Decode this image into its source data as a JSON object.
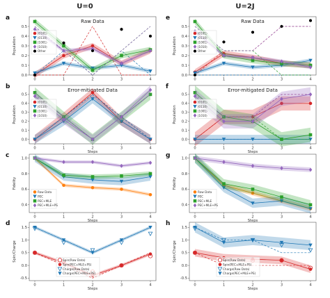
{
  "column_titles": [
    "U=0",
    "U=2J"
  ],
  "colors": {
    "s0101": "#d62728",
    "s0110": "#1f77b4",
    "s1001": "#2ca02c",
    "s1010": "#9467bd",
    "raw": "#ff7f0e",
    "other": "#000000"
  },
  "chart_data": [
    {
      "label": "a",
      "title": "Raw Data",
      "type": "line",
      "xlabel": "",
      "ylabel": "Population",
      "x": [
        0,
        1,
        2,
        3,
        4
      ],
      "ylim": [
        0,
        0.6
      ],
      "yticks": [
        "0.0",
        "0.1",
        "0.2",
        "0.3",
        "0.4",
        "0.5"
      ],
      "legend": [
        "|0101⟩",
        "|0110⟩",
        "|1001⟩",
        "|1010⟩",
        "Other"
      ],
      "series": [
        {
          "name": "|0101⟩",
          "key": "s0101",
          "marker": "circle",
          "values": [
            0.0,
            0.2,
            0.3,
            0.12,
            0.25
          ],
          "ideal": [
            0.0,
            0.0,
            0.5,
            0.0,
            0.0
          ],
          "band": 0.03
        },
        {
          "name": "|0110⟩",
          "key": "s0110",
          "marker": "tri",
          "values": [
            0.02,
            0.12,
            0.07,
            0.1,
            0.04
          ],
          "ideal": [
            0.0,
            0.25,
            0.0,
            0.25,
            0.0
          ],
          "band": 0.02
        },
        {
          "name": "|1001⟩",
          "key": "s1001",
          "marker": "square",
          "values": [
            0.55,
            0.3,
            0.05,
            0.2,
            0.26
          ],
          "ideal": [
            0.5,
            0.25,
            0.0,
            0.25,
            0.5
          ],
          "band": 0.03
        },
        {
          "name": "|1010⟩",
          "key": "s1010",
          "marker": "diamond",
          "values": [
            0.47,
            0.25,
            0.27,
            0.12,
            0.25
          ],
          "ideal": [
            0.5,
            0.25,
            0.0,
            0.25,
            0.5
          ],
          "band": 0.02
        },
        {
          "name": "Other",
          "key": "other",
          "marker": "hexagon",
          "values": [
            0.0,
            0.33,
            0.25,
            0.47,
            0.4
          ],
          "ideal": [],
          "band": 0
        }
      ]
    },
    {
      "label": "e",
      "title": "Raw Data",
      "type": "line",
      "xlabel": "",
      "ylabel": "Population",
      "x": [
        0,
        1,
        2,
        3,
        4
      ],
      "ylim": [
        0,
        0.6
      ],
      "yticks": [
        "0.0",
        "0.1",
        "0.2",
        "0.3",
        "0.4",
        "0.5"
      ],
      "legend": [
        "|0101⟩",
        "|0110⟩",
        "|1001⟩",
        "|1010⟩",
        "Other"
      ],
      "series": [
        {
          "name": "|0101⟩",
          "key": "s0101",
          "marker": "circle",
          "values": [
            0.03,
            0.22,
            0.18,
            0.12,
            0.1
          ],
          "ideal": [
            0.0,
            0.25,
            0.25,
            0.5,
            0.5
          ],
          "band": 0.03
        },
        {
          "name": "|0110⟩",
          "key": "s0110",
          "marker": "tri",
          "values": [
            0.02,
            0.12,
            0.08,
            0.1,
            0.15
          ],
          "ideal": [
            0.0,
            0.0,
            0.0,
            0.0,
            0.0
          ],
          "band": 0.02
        },
        {
          "name": "|1001⟩",
          "key": "s1001",
          "marker": "square",
          "values": [
            0.55,
            0.2,
            0.15,
            0.12,
            0.1
          ],
          "ideal": [
            0.5,
            0.25,
            0.25,
            0.0,
            0.0
          ],
          "band": 0.03
        },
        {
          "name": "|1010⟩",
          "key": "s1010",
          "marker": "diamond",
          "values": [
            0.45,
            0.2,
            0.18,
            0.14,
            0.08
          ],
          "ideal": [
            0.5,
            0.25,
            0.25,
            0.5,
            0.5
          ],
          "band": 0.02
        },
        {
          "name": "Other",
          "key": "other",
          "marker": "hexagon",
          "values": [
            0.0,
            0.34,
            0.44,
            0.5,
            0.56
          ],
          "ideal": [],
          "band": 0
        }
      ]
    },
    {
      "label": "b",
      "title": "Error-mitigated Data",
      "type": "line",
      "xlabel": "Steps",
      "ylabel": "Population",
      "x": [
        0,
        1,
        2,
        3,
        4
      ],
      "ylim": [
        -0.05,
        0.6
      ],
      "yticks": [
        "0.0",
        "0.1",
        "0.2",
        "0.3",
        "0.4",
        "0.5"
      ],
      "legend": [
        "|0101⟩",
        "|0110⟩",
        "|1001⟩",
        "|1010⟩"
      ],
      "series": [
        {
          "name": "|0101⟩",
          "key": "s0101",
          "marker": "circle",
          "values": [
            0.0,
            0.25,
            0.52,
            0.2,
            0.0
          ],
          "ideal": [
            0.0,
            0.25,
            0.5,
            0.25,
            0.0
          ],
          "band": 0.05
        },
        {
          "name": "|0110⟩",
          "key": "s0110",
          "marker": "tri",
          "values": [
            0.0,
            0.2,
            0.45,
            0.2,
            0.0
          ],
          "ideal": [
            0.0,
            0.25,
            0.5,
            0.25,
            0.0
          ],
          "band": 0.05
        },
        {
          "name": "|1001⟩",
          "key": "s1001",
          "marker": "square",
          "values": [
            0.52,
            0.25,
            0.0,
            0.25,
            0.5
          ],
          "ideal": [
            0.5,
            0.25,
            0.0,
            0.25,
            0.5
          ],
          "band": 0.06
        },
        {
          "name": "|1010⟩",
          "key": "s1010",
          "marker": "diamond",
          "values": [
            0.48,
            0.22,
            0.0,
            0.25,
            0.55
          ],
          "ideal": [
            0.5,
            0.25,
            0.0,
            0.25,
            0.5
          ],
          "band": 0.05
        }
      ]
    },
    {
      "label": "f",
      "title": "Error-mitigated Data",
      "type": "line",
      "xlabel": "Steps",
      "ylabel": "Population",
      "x": [
        0,
        1,
        2,
        3,
        4
      ],
      "ylim": [
        -0.05,
        0.6
      ],
      "yticks": [
        "0.0",
        "0.1",
        "0.2",
        "0.3",
        "0.4",
        "0.5"
      ],
      "legend": [
        "|0101⟩",
        "|0110⟩",
        "|1001⟩",
        "|1010⟩"
      ],
      "series": [
        {
          "name": "|0101⟩",
          "key": "s0101",
          "marker": "circle",
          "values": [
            0.0,
            0.25,
            0.25,
            0.4,
            0.4
          ],
          "ideal": [
            0.0,
            0.25,
            0.25,
            0.5,
            0.5
          ],
          "band": 0.08
        },
        {
          "name": "|0110⟩",
          "key": "s0110",
          "marker": "tri",
          "values": [
            0.0,
            0.0,
            0.0,
            0.0,
            0.0
          ],
          "ideal": [
            0.0,
            0.0,
            0.0,
            0.0,
            0.0
          ],
          "band": 0.05
        },
        {
          "name": "|1001⟩",
          "key": "s1001",
          "marker": "square",
          "values": [
            0.52,
            0.25,
            0.2,
            0.0,
            0.05
          ],
          "ideal": [
            0.5,
            0.25,
            0.25,
            0.0,
            0.0
          ],
          "band": 0.08
        },
        {
          "name": "|1010⟩",
          "key": "s1010",
          "marker": "diamond",
          "values": [
            0.48,
            0.2,
            0.2,
            0.45,
            0.5
          ],
          "ideal": [
            0.5,
            0.25,
            0.25,
            0.5,
            0.5
          ],
          "band": 0.08
        }
      ]
    },
    {
      "label": "c",
      "title": "",
      "type": "line",
      "xlabel": "Steps",
      "ylabel": "Fidelity",
      "x": [
        0,
        1,
        2,
        3,
        4
      ],
      "ylim": [
        0.3,
        1.05
      ],
      "yticks": [
        "0.4",
        "0.6",
        "0.8",
        "1.0"
      ],
      "legend": [
        "Raw Data",
        "PEC",
        "PEC+MLE",
        "PEC+MLE+PS"
      ],
      "series": [
        {
          "name": "Raw Data",
          "key": "raw",
          "marker": "circle",
          "values": [
            1.0,
            0.65,
            0.62,
            0.6,
            0.53
          ],
          "ideal": [],
          "band": 0.02
        },
        {
          "name": "PEC",
          "key": "s0110",
          "marker": "tri",
          "values": [
            1.0,
            0.76,
            0.72,
            0.7,
            0.76
          ],
          "ideal": [],
          "band": 0.05
        },
        {
          "name": "PEC+MLE",
          "key": "s1001",
          "marker": "square",
          "values": [
            1.0,
            0.78,
            0.76,
            0.77,
            0.8
          ],
          "ideal": [],
          "band": 0.03
        },
        {
          "name": "PEC+MLE+PS",
          "key": "s1010",
          "marker": "diamond",
          "values": [
            1.0,
            0.95,
            0.95,
            0.9,
            0.94
          ],
          "ideal": [],
          "band": 0.02
        }
      ]
    },
    {
      "label": "g",
      "title": "",
      "type": "line",
      "xlabel": "Steps",
      "ylabel": "Fidelity",
      "x": [
        0,
        1,
        2,
        3,
        4
      ],
      "ylim": [
        0.3,
        1.05
      ],
      "yticks": [
        "0.4",
        "0.6",
        "0.8",
        "1.0"
      ],
      "legend": [
        "Raw Data",
        "PEC",
        "PEC+MLE",
        "PEC+MLE+PS"
      ],
      "series": [
        {
          "name": "Raw Data",
          "key": "raw",
          "marker": "circle",
          "values": [
            1.0,
            0.65,
            0.55,
            0.45,
            0.35
          ],
          "ideal": [],
          "band": 0.03
        },
        {
          "name": "PEC",
          "key": "s0110",
          "marker": "tri",
          "values": [
            1.0,
            0.62,
            0.42,
            0.45,
            0.35
          ],
          "ideal": [],
          "band": 0.06
        },
        {
          "name": "PEC+MLE",
          "key": "s1001",
          "marker": "square",
          "values": [
            1.0,
            0.67,
            0.6,
            0.5,
            0.4
          ],
          "ideal": [],
          "band": 0.06
        },
        {
          "name": "PEC+MLE+PS",
          "key": "s1010",
          "marker": "diamond",
          "values": [
            1.0,
            0.95,
            0.9,
            0.87,
            0.85
          ],
          "ideal": [],
          "band": 0.03
        }
      ]
    },
    {
      "label": "d",
      "title": "",
      "type": "line",
      "xlabel": "Steps",
      "ylabel": "Spin/Charge",
      "x": [
        0,
        1,
        2,
        3,
        4
      ],
      "ylim": [
        -0.6,
        1.7
      ],
      "yticks": [
        "-0.5",
        "0.0",
        "0.5",
        "1.0",
        "1.5"
      ],
      "legend": [
        "Spin(Raw Data)",
        "Spin(PEC+MLE+PS)",
        "Charge(Raw Data)",
        "Charge(PEC+MLE+PS)"
      ],
      "series": [
        {
          "name": "Spin(Raw Data)",
          "key": "s0101",
          "marker": "open-circle",
          "values": [
            0.5,
            0.15,
            -0.25,
            0.0,
            0.37
          ],
          "ideal": [],
          "band": 0
        },
        {
          "name": "Spin(PEC+MLE+PS)",
          "key": "s0101",
          "marker": "circle",
          "values": [
            0.5,
            0.1,
            -0.4,
            0.0,
            0.45
          ],
          "ideal": [
            0.5,
            0.0,
            -0.5,
            0.0,
            0.5
          ],
          "band": 0.06
        },
        {
          "name": "Charge(Raw Data)",
          "key": "s0110",
          "marker": "open-tri",
          "values": [
            1.45,
            0.9,
            0.6,
            0.9,
            1.25
          ],
          "ideal": [],
          "band": 0
        },
        {
          "name": "Charge(PEC+MLE+PS)",
          "key": "s0110",
          "marker": "tri",
          "values": [
            1.5,
            1.0,
            0.5,
            1.0,
            1.5
          ],
          "ideal": [
            1.5,
            1.0,
            0.5,
            1.0,
            1.5
          ],
          "band": 0.06
        }
      ]
    },
    {
      "label": "h",
      "title": "",
      "type": "line",
      "xlabel": "Steps",
      "ylabel": "Spin/Charge",
      "x": [
        0,
        1,
        2,
        3,
        4
      ],
      "ylim": [
        -0.6,
        1.7
      ],
      "yticks": [
        "-0.5",
        "0.0",
        "0.5",
        "1.0",
        "1.5"
      ],
      "legend": [
        "Spin(Raw Data)",
        "Spin(PEC+MLE+PS)",
        "Charge(Raw Data)",
        "Charge(PEC+MLE+PS)"
      ],
      "series": [
        {
          "name": "Spin(Raw Data)",
          "key": "s0101",
          "marker": "open-circle",
          "values": [
            0.5,
            0.25,
            0.2,
            0.2,
            -0.1
          ],
          "ideal": [],
          "band": 0
        },
        {
          "name": "Spin(PEC+MLE+PS)",
          "key": "s0101",
          "marker": "circle",
          "values": [
            0.5,
            0.3,
            0.25,
            0.2,
            -0.15
          ],
          "ideal": [
            0.5,
            0.0,
            0.0,
            0.0,
            0.0
          ],
          "band": 0.15
        },
        {
          "name": "Charge(Raw Data)",
          "key": "s0110",
          "marker": "open-tri",
          "values": [
            1.45,
            1.0,
            1.0,
            0.8,
            0.6
          ],
          "ideal": [],
          "band": 0
        },
        {
          "name": "Charge(PEC+MLE+PS)",
          "key": "s0110",
          "marker": "tri",
          "values": [
            1.5,
            0.9,
            1.0,
            0.9,
            0.8
          ],
          "ideal": [
            1.5,
            1.0,
            1.0,
            0.5,
            0.5
          ],
          "band": 0.2
        }
      ]
    }
  ]
}
